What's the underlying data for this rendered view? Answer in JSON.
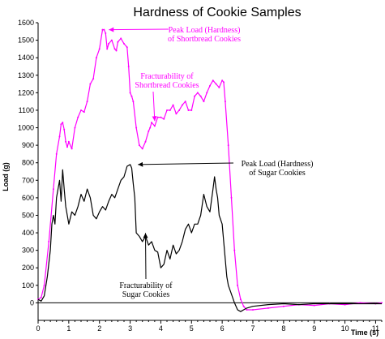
{
  "chart_data": {
    "type": "line",
    "title": "Hardness of Cookie Samples",
    "xlabel": "Time (s)",
    "ylabel": "Load (g)",
    "xlim": [
      0,
      11.2
    ],
    "ylim": [
      -100,
      1600
    ],
    "xticks": [
      0,
      1,
      2,
      3,
      4,
      5,
      6,
      7,
      8,
      9,
      10,
      11
    ],
    "yticks": [
      0,
      100,
      200,
      300,
      400,
      500,
      600,
      700,
      800,
      900,
      1000,
      1100,
      1200,
      1300,
      1400,
      1500,
      1600
    ],
    "grid": false,
    "series": [
      {
        "color": "#ff00ff",
        "x": [
          0,
          0.1,
          0.2,
          0.35,
          0.5,
          0.6,
          0.7,
          0.75,
          0.8,
          0.85,
          0.9,
          0.95,
          1.0,
          1.1,
          1.2,
          1.3,
          1.4,
          1.5,
          1.6,
          1.7,
          1.8,
          1.9,
          2.0,
          2.1,
          2.15,
          2.2,
          2.25,
          2.3,
          2.4,
          2.5,
          2.55,
          2.6,
          2.7,
          2.8,
          2.9,
          2.95,
          3.0,
          3.05,
          3.1,
          3.2,
          3.3,
          3.4,
          3.5,
          3.6,
          3.65,
          3.7,
          3.8,
          3.9,
          4.0,
          4.1,
          4.2,
          4.3,
          4.4,
          4.5,
          4.6,
          4.7,
          4.8,
          4.9,
          5.0,
          5.1,
          5.2,
          5.3,
          5.4,
          5.5,
          5.6,
          5.7,
          5.8,
          5.9,
          6.0,
          6.05,
          6.1,
          6.2,
          6.3,
          6.4,
          6.5,
          6.6,
          6.7,
          6.8,
          7.0,
          7.5,
          8.0,
          8.5,
          9.0,
          9.5,
          10.0,
          10.5,
          11.0,
          11.2
        ],
        "y": [
          20,
          30,
          100,
          350,
          650,
          850,
          950,
          1020,
          1030,
          990,
          920,
          890,
          920,
          880,
          1000,
          1060,
          1100,
          1090,
          1150,
          1250,
          1280,
          1400,
          1450,
          1560,
          1560,
          1540,
          1450,
          1480,
          1500,
          1450,
          1440,
          1490,
          1510,
          1480,
          1460,
          1350,
          1200,
          1180,
          1150,
          1000,
          900,
          880,
          920,
          980,
          1000,
          1030,
          1010,
          1060,
          1060,
          1050,
          1100,
          1100,
          1130,
          1080,
          1100,
          1130,
          1150,
          1100,
          1100,
          1180,
          1200,
          1180,
          1150,
          1200,
          1240,
          1270,
          1250,
          1230,
          1270,
          1260,
          1150,
          900,
          600,
          300,
          100,
          20,
          -20,
          -40,
          -40,
          -30,
          -20,
          -10,
          -15,
          -5,
          -10,
          0,
          -5,
          0
        ]
      },
      {
        "color": "#000000",
        "x": [
          0,
          0.1,
          0.2,
          0.3,
          0.4,
          0.45,
          0.5,
          0.55,
          0.6,
          0.65,
          0.7,
          0.75,
          0.8,
          0.85,
          0.9,
          0.95,
          1.0,
          1.1,
          1.2,
          1.3,
          1.4,
          1.5,
          1.6,
          1.7,
          1.8,
          1.9,
          2.0,
          2.1,
          2.2,
          2.3,
          2.4,
          2.5,
          2.6,
          2.7,
          2.8,
          2.9,
          3.0,
          3.05,
          3.1,
          3.15,
          3.2,
          3.3,
          3.4,
          3.5,
          3.6,
          3.7,
          3.8,
          3.9,
          4.0,
          4.1,
          4.2,
          4.3,
          4.4,
          4.5,
          4.6,
          4.7,
          4.8,
          4.9,
          5.0,
          5.1,
          5.2,
          5.3,
          5.4,
          5.5,
          5.6,
          5.7,
          5.75,
          5.8,
          5.85,
          5.9,
          6.0,
          6.05,
          6.1,
          6.15,
          6.2,
          6.3,
          6.4,
          6.5,
          6.6,
          6.7,
          6.8,
          7.0,
          7.5,
          8.0,
          8.5,
          9.0,
          9.5,
          10.0,
          10.5,
          11.0,
          11.2
        ],
        "y": [
          20,
          10,
          40,
          150,
          300,
          450,
          500,
          450,
          600,
          650,
          700,
          580,
          760,
          650,
          550,
          500,
          450,
          520,
          500,
          550,
          620,
          580,
          650,
          600,
          500,
          480,
          520,
          550,
          530,
          580,
          620,
          600,
          650,
          700,
          720,
          780,
          790,
          770,
          680,
          600,
          400,
          380,
          350,
          380,
          330,
          350,
          300,
          290,
          200,
          220,
          300,
          250,
          330,
          280,
          300,
          350,
          420,
          450,
          400,
          450,
          450,
          500,
          620,
          550,
          520,
          650,
          720,
          650,
          600,
          500,
          450,
          350,
          250,
          150,
          100,
          50,
          0,
          -40,
          -50,
          -40,
          -30,
          -20,
          -10,
          -5,
          -10,
          -5,
          -5,
          -5,
          -5,
          -5,
          -5
        ]
      }
    ],
    "annotations": [
      {
        "lines": [
          "Peak Load (Hardness)",
          "of Shortbread Cookies"
        ],
        "color": "#ff00ff",
        "target": [
          2.2,
          1560
        ]
      },
      {
        "lines": [
          "Fracturability of",
          "Shortbread Cookies"
        ],
        "color": "#ff00ff",
        "target": [
          3.8,
          1020
        ]
      },
      {
        "lines": [
          "Peak Load (Hardness)",
          "of Sugar Cookies"
        ],
        "color": "#000000",
        "target": [
          3.15,
          790
        ]
      },
      {
        "lines": [
          "Fracturability of",
          "Sugar Cookies"
        ],
        "color": "#000000",
        "target": [
          3.5,
          380
        ]
      }
    ]
  }
}
